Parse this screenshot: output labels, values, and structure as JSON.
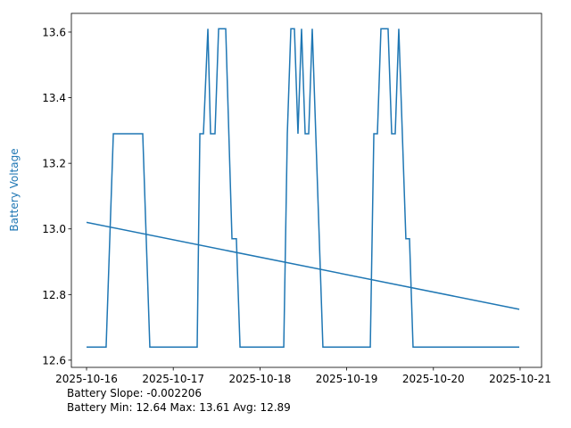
{
  "chart_data": {
    "type": "line",
    "y_label": "Battery Voltage",
    "annotations": [
      "Battery Slope: -0.002206",
      "Battery Min: 12.64 Max: 13.61 Avg: 12.89"
    ],
    "series": [
      {
        "color": "#1f77b4",
        "x": [
          "2025-10-16T00:00",
          "2025-10-16T05:25",
          "2025-10-16T07:25",
          "2025-10-16T15:33",
          "2025-10-16T17:31",
          "2025-10-17T06:37",
          "2025-10-17T07:22",
          "2025-10-17T08:21",
          "2025-10-17T09:35",
          "2025-10-17T10:19",
          "2025-10-17T11:33",
          "2025-10-17T12:33",
          "2025-10-17T14:31",
          "2025-10-17T16:15",
          "2025-10-17T17:28",
          "2025-10-17T18:29",
          "2025-10-18T06:35",
          "2025-10-18T07:34",
          "2025-10-18T08:33",
          "2025-10-18T09:32",
          "2025-10-18T10:31",
          "2025-10-18T11:30",
          "2025-10-18T12:30",
          "2025-10-18T13:29",
          "2025-10-18T14:28",
          "2025-10-18T17:25",
          "2025-10-19T06:32",
          "2025-10-19T07:31",
          "2025-10-19T08:30",
          "2025-10-19T09:29",
          "2025-10-19T11:27",
          "2025-10-19T12:27",
          "2025-10-19T13:26",
          "2025-10-19T14:25",
          "2025-10-19T16:23",
          "2025-10-19T17:23",
          "2025-10-19T18:22",
          "2025-10-20T23:46"
        ],
        "values": [
          12.64,
          12.64,
          13.29,
          13.29,
          12.64,
          12.64,
          13.29,
          13.29,
          13.61,
          13.29,
          13.29,
          13.61,
          13.61,
          12.97,
          12.97,
          12.64,
          12.64,
          13.29,
          13.61,
          13.61,
          13.29,
          13.61,
          13.29,
          13.29,
          13.61,
          12.64,
          12.64,
          13.29,
          13.29,
          13.61,
          13.61,
          13.29,
          13.29,
          13.61,
          12.97,
          12.97,
          12.64,
          12.64
        ]
      },
      {
        "color": "#1f77b4",
        "x": [
          "2025-10-16T00:00",
          "2025-10-20T23:46"
        ],
        "values": [
          13.02,
          12.755
        ]
      }
    ],
    "xlim": [
      "2025-10-15T19:48",
      "2025-10-21T05:56"
    ],
    "xticks": [
      "2025-10-16",
      "2025-10-17",
      "2025-10-18",
      "2025-10-19",
      "2025-10-20",
      "2025-10-21"
    ],
    "ylim": [
      12.578,
      13.657
    ],
    "yticks": [
      {
        "value": 12.6,
        "label": "12.6"
      },
      {
        "value": 12.8,
        "label": "12.8"
      },
      {
        "value": 13.0,
        "label": "13.0"
      },
      {
        "value": 13.2,
        "label": "13.2"
      },
      {
        "value": 13.4,
        "label": "13.4"
      },
      {
        "value": 13.6,
        "label": "13.6"
      }
    ]
  }
}
